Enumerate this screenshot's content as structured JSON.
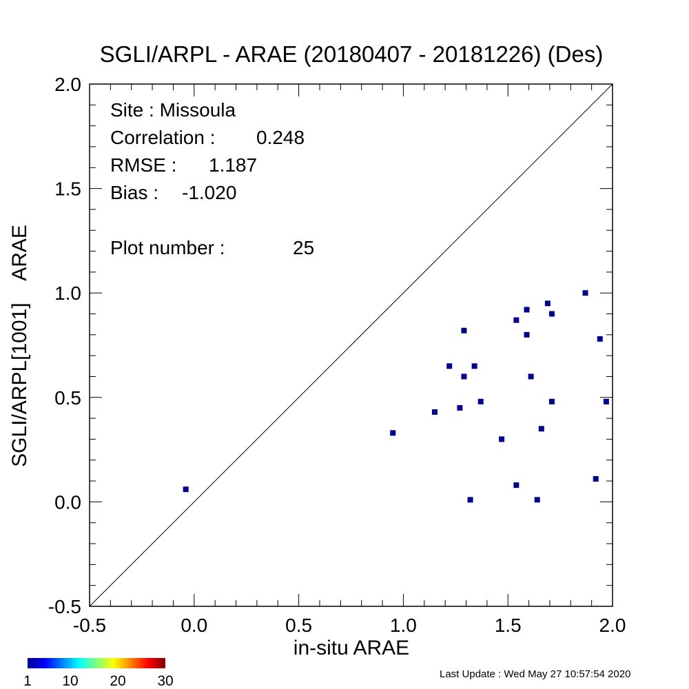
{
  "chart_data": {
    "type": "scatter",
    "title": "SGLI/ARPL - ARAE (20180407 - 20181226) (Des)",
    "xlabel": "in-situ ARAE",
    "ylabel": "SGLI/ARPL[1001]    ARAE",
    "xlim": [
      -0.5,
      2.0
    ],
    "ylim": [
      -0.5,
      2.0
    ],
    "x_ticks": [
      "-0.5",
      "0.0",
      "0.5",
      "1.0",
      "1.5",
      "2.0"
    ],
    "y_ticks": [
      "-0.5",
      "0.0",
      "0.5",
      "1.0",
      "1.5",
      "2.0"
    ],
    "reference_line": "1:1",
    "grid": false,
    "marker_color": "#00008b",
    "points": [
      {
        "x": -0.04,
        "y": 0.06
      },
      {
        "x": 0.95,
        "y": 0.33
      },
      {
        "x": 1.15,
        "y": 0.43
      },
      {
        "x": 1.22,
        "y": 0.65
      },
      {
        "x": 1.27,
        "y": 0.45
      },
      {
        "x": 1.29,
        "y": 0.82
      },
      {
        "x": 1.29,
        "y": 0.6
      },
      {
        "x": 1.32,
        "y": 0.01
      },
      {
        "x": 1.34,
        "y": 0.65
      },
      {
        "x": 1.37,
        "y": 0.48
      },
      {
        "x": 1.47,
        "y": 0.3
      },
      {
        "x": 1.54,
        "y": 0.87
      },
      {
        "x": 1.54,
        "y": 0.08
      },
      {
        "x": 1.59,
        "y": 0.92
      },
      {
        "x": 1.59,
        "y": 0.8
      },
      {
        "x": 1.61,
        "y": 0.6
      },
      {
        "x": 1.64,
        "y": 0.01
      },
      {
        "x": 1.66,
        "y": 0.35
      },
      {
        "x": 1.69,
        "y": 0.95
      },
      {
        "x": 1.71,
        "y": 0.9
      },
      {
        "x": 1.71,
        "y": 0.48
      },
      {
        "x": 1.87,
        "y": 1.0
      },
      {
        "x": 1.92,
        "y": 0.11
      },
      {
        "x": 1.94,
        "y": 0.78
      },
      {
        "x": 1.97,
        "y": 0.48
      }
    ],
    "stats": [
      {
        "label": "Site : Missoula",
        "value": ""
      },
      {
        "label": "Correlation :",
        "value": "0.248"
      },
      {
        "label": "RMSE :",
        "value": "1.187"
      },
      {
        "label": "Bias :",
        "value": "-1.020"
      },
      {
        "label": "Plot number :",
        "value": "25"
      }
    ],
    "colorbar": {
      "range": [
        1,
        30
      ],
      "tick_labels": [
        "1",
        "10",
        "20",
        "30"
      ]
    }
  },
  "footer": {
    "last_update": "Last Update : Wed May 27 10:57:54 2020"
  }
}
